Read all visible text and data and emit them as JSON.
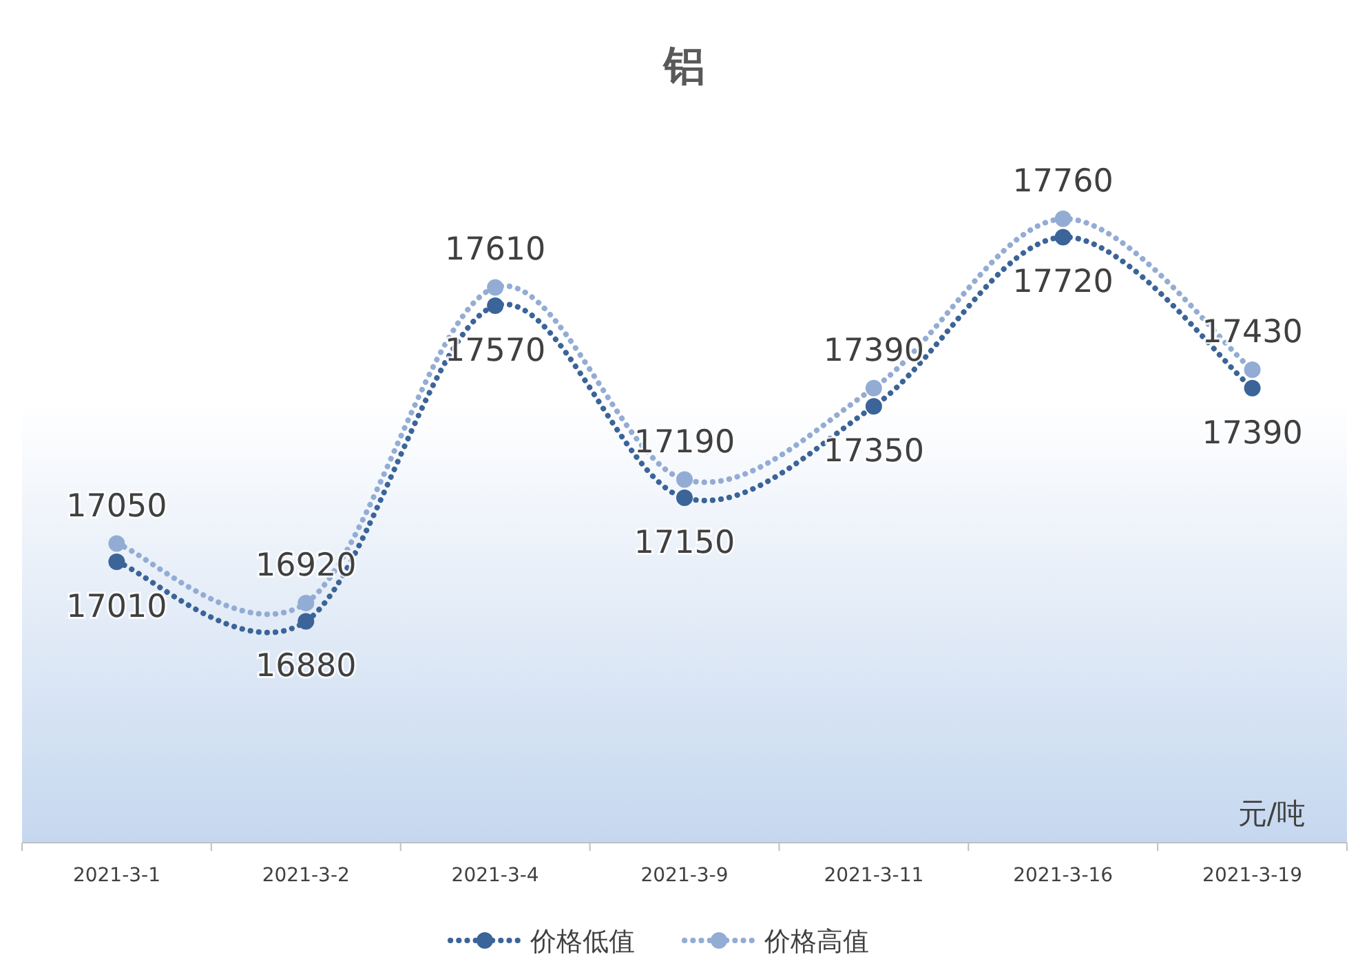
{
  "chart_data": {
    "type": "line",
    "title": "铝",
    "categories": [
      "2021-3-1",
      "2021-3-2",
      "2021-3-4",
      "2021-3-9",
      "2021-3-11",
      "2021-3-16",
      "2021-3-19"
    ],
    "series": [
      {
        "name": "价格低值",
        "color": "#3b6498",
        "values": [
          17010,
          16880,
          17570,
          17150,
          17350,
          17720,
          17390
        ]
      },
      {
        "name": "价格高值",
        "color": "#93acd4",
        "values": [
          17050,
          16920,
          17610,
          17190,
          17390,
          17760,
          17430
        ]
      }
    ],
    "data_labels": true,
    "marker": "circle",
    "line_style": "dotted",
    "grid": false,
    "legend": "bottom",
    "annotations": [
      "元/吨"
    ]
  }
}
